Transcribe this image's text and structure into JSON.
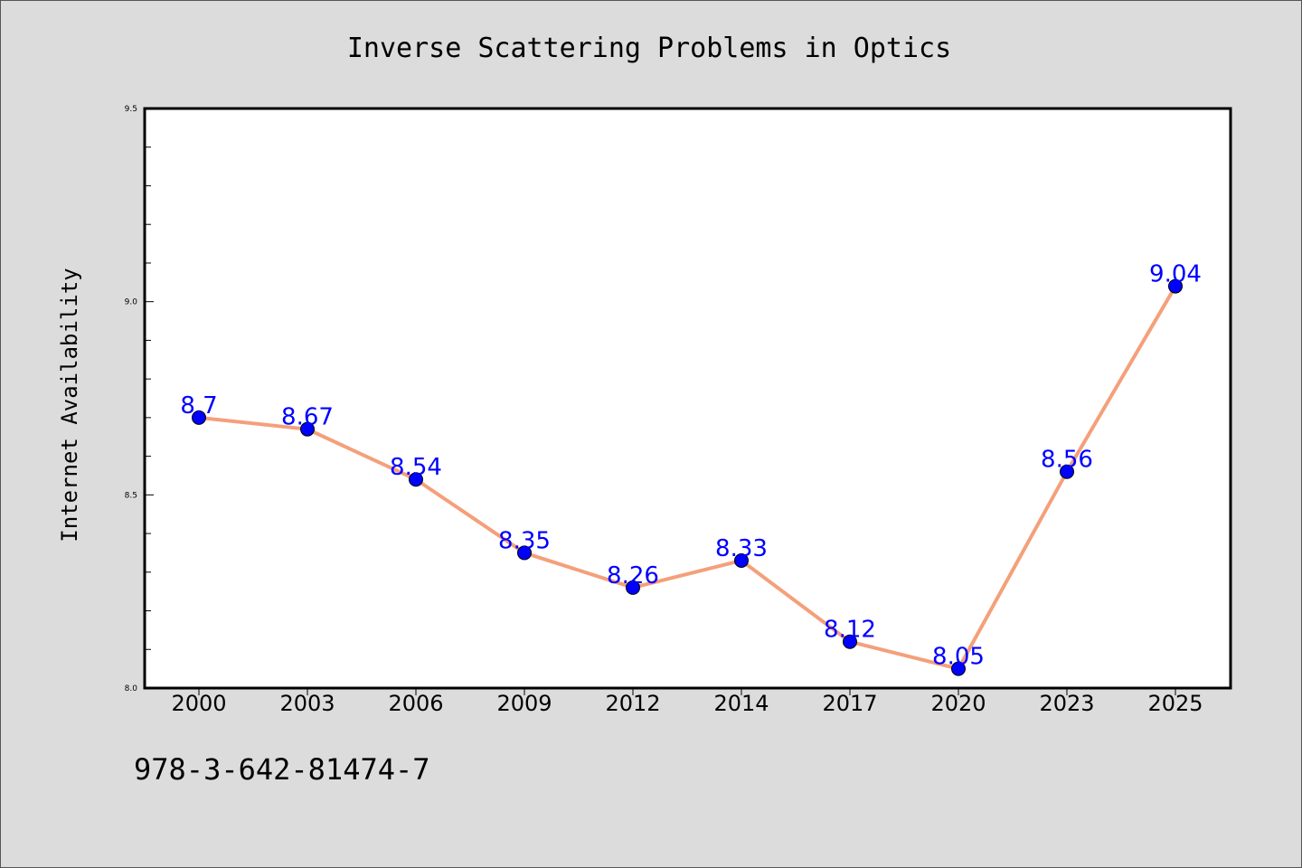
{
  "chart_data": {
    "type": "line",
    "title": "Inverse Scattering Problems in Optics",
    "xlabel": "",
    "ylabel": "Internet Availability",
    "categories": [
      "2000",
      "2003",
      "2006",
      "2009",
      "2012",
      "2014",
      "2017",
      "2020",
      "2023",
      "2025"
    ],
    "series": [
      {
        "values": [
          8.7,
          8.67,
          8.54,
          8.35,
          8.26,
          8.33,
          8.12,
          8.05,
          8.56,
          9.04
        ]
      }
    ],
    "data_labels": [
      "8.7",
      "8.67",
      "8.54",
      "8.35",
      "8.26",
      "8.33",
      "8.12",
      "8.05",
      "8.56",
      "9.04"
    ],
    "ylim": [
      8.0,
      9.5
    ],
    "yticks": [
      "8.0",
      "8.5",
      "9.0",
      "9.5"
    ],
    "yminor_step": 0.1,
    "grid": false,
    "colors": {
      "line": "#f4a07a",
      "marker": "#0000ff",
      "label": "#0000ff",
      "background": "#dcdcdc",
      "plot_bg": "#ffffff"
    }
  },
  "footer": {
    "isbn": "978-3-642-81474-7"
  }
}
